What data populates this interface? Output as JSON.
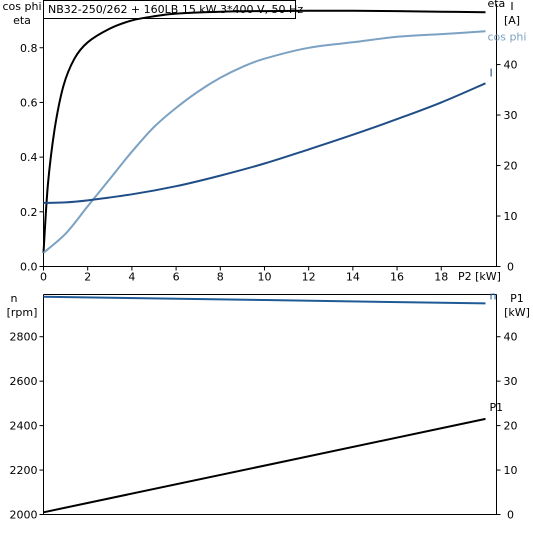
{
  "title": "NB32-250/262 + 160LB   15 kW   3*400 V, 50 Hz",
  "colors": {
    "eta": "#000000",
    "cos_phi": "#7ba1c3",
    "I": "#1f4e86",
    "n": "#1f5a96",
    "P1": "#000000"
  },
  "chart_data": [
    {
      "type": "line",
      "x_label": "P2 [kW]",
      "x_ticks": [
        "0",
        "2",
        "4",
        "6",
        "8",
        "10",
        "12",
        "14",
        "16",
        "18"
      ],
      "xlim": [
        0,
        20.5
      ],
      "left_axis": {
        "label_line1": "cos phi",
        "label_line2": "eta",
        "ticks": [
          "0.0",
          "0.2",
          "0.4",
          "0.6",
          "0.8"
        ],
        "ylim": [
          0,
          0.96
        ]
      },
      "right_axis": {
        "label_line1": "I",
        "label_line2": "[A]",
        "ticks": [
          "0",
          "10",
          "20",
          "30",
          "40"
        ],
        "ylim": [
          0,
          52
        ]
      },
      "series": [
        {
          "name": "eta",
          "axis": "left",
          "x": [
            0,
            0.2,
            0.5,
            0.9,
            1.4,
            2,
            3,
            4,
            5,
            6,
            8,
            10,
            12,
            14,
            16,
            18,
            20
          ],
          "y": [
            0.05,
            0.3,
            0.5,
            0.66,
            0.76,
            0.82,
            0.87,
            0.9,
            0.915,
            0.925,
            0.932,
            0.934,
            0.935,
            0.935,
            0.934,
            0.932,
            0.93
          ]
        },
        {
          "name": "cos phi",
          "axis": "left",
          "x": [
            0,
            1,
            2,
            3,
            4,
            5,
            6,
            7,
            8,
            9,
            10,
            12,
            14,
            16,
            18,
            20
          ],
          "y": [
            0.05,
            0.12,
            0.22,
            0.32,
            0.42,
            0.51,
            0.58,
            0.64,
            0.69,
            0.73,
            0.76,
            0.8,
            0.82,
            0.84,
            0.85,
            0.86
          ]
        },
        {
          "name": "I",
          "axis": "right",
          "x": [
            0,
            1,
            2,
            4,
            6,
            8,
            10,
            12,
            14,
            16,
            18,
            20
          ],
          "y": [
            12.6,
            12.7,
            13.1,
            14.3,
            15.9,
            18,
            20.4,
            23.2,
            26.1,
            29.2,
            32.5,
            36.3
          ]
        }
      ]
    },
    {
      "type": "line",
      "x_label": "",
      "xlim": [
        0,
        20.5
      ],
      "left_axis": {
        "label_line1": "n",
        "label_line2": "[rpm]",
        "ticks": [
          "2000",
          "2200",
          "2400",
          "2600",
          "2800"
        ],
        "ylim": [
          2000,
          2990
        ]
      },
      "right_axis": {
        "label_line1": "P1",
        "label_line2": "[kW]",
        "ticks": [
          "0",
          "10",
          "20",
          "30",
          "40"
        ],
        "ylim": [
          0,
          49.5
        ]
      },
      "series": [
        {
          "name": "n",
          "axis": "left",
          "x": [
            0,
            20
          ],
          "y": [
            2980,
            2950
          ]
        },
        {
          "name": "P1",
          "axis": "right",
          "x": [
            0,
            20
          ],
          "y": [
            0.5,
            21.5
          ]
        }
      ]
    }
  ]
}
